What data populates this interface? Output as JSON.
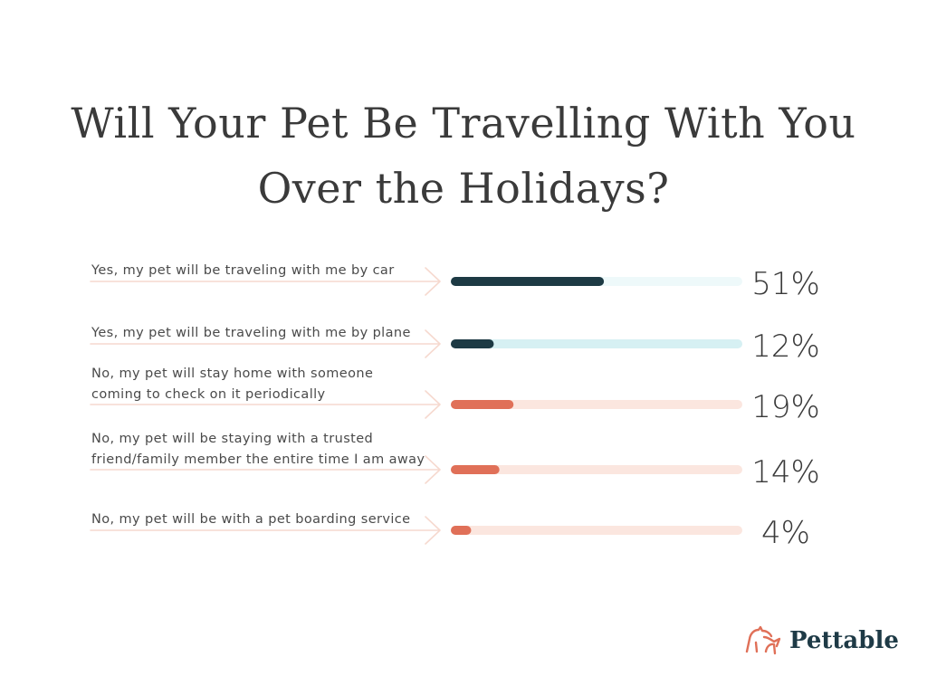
{
  "title_lines": [
    "Will Your Pet Be Travelling With You",
    "Over the Holidays?"
  ],
  "chart_data": {
    "type": "bar",
    "orientation": "horizontal",
    "title": "Will Your Pet Be Travelling With You Over the Holidays?",
    "xlim": [
      0,
      100
    ],
    "grid": false,
    "categories": [
      "Yes, my pet will be traveling with me  by car",
      "Yes, my pet will be traveling with me by plane",
      "No, my pet will stay home with someone coming to check on it periodically",
      "No, my pet will be staying with a trusted friend/family member the entire time I am away",
      "No, my pet will be with a pet boarding service"
    ],
    "label_lines": [
      [
        "Yes, my pet will be traveling with me  by car"
      ],
      [
        "Yes, my pet will be traveling with me by plane"
      ],
      [
        "No, my pet will stay home with someone",
        "coming to check on it periodically"
      ],
      [
        "No, my pet will be staying with a trusted",
        "friend/family member the entire time I am away"
      ],
      [
        "No, my pet will be with a pet boarding service"
      ]
    ],
    "values": [
      51,
      12,
      19,
      14,
      4
    ],
    "value_labels": [
      "51%",
      "12%",
      "19%",
      "14%",
      "4%"
    ],
    "bar_colors": [
      "#1d3a44",
      "#1d3a44",
      "#e07058",
      "#e07058",
      "#e07058"
    ],
    "track_colors": [
      "#eef9fa",
      "#d6f0f3",
      "#fbe6df",
      "#fbe6df",
      "#fbe6df"
    ]
  },
  "colors": {
    "title": "#3a3a3a",
    "arrow": "#f6d9cf",
    "brand": "#1e3a46",
    "logo_accent": "#e07058"
  },
  "brand": {
    "name": "Pettable",
    "icon": "pet-silhouette-icon"
  }
}
